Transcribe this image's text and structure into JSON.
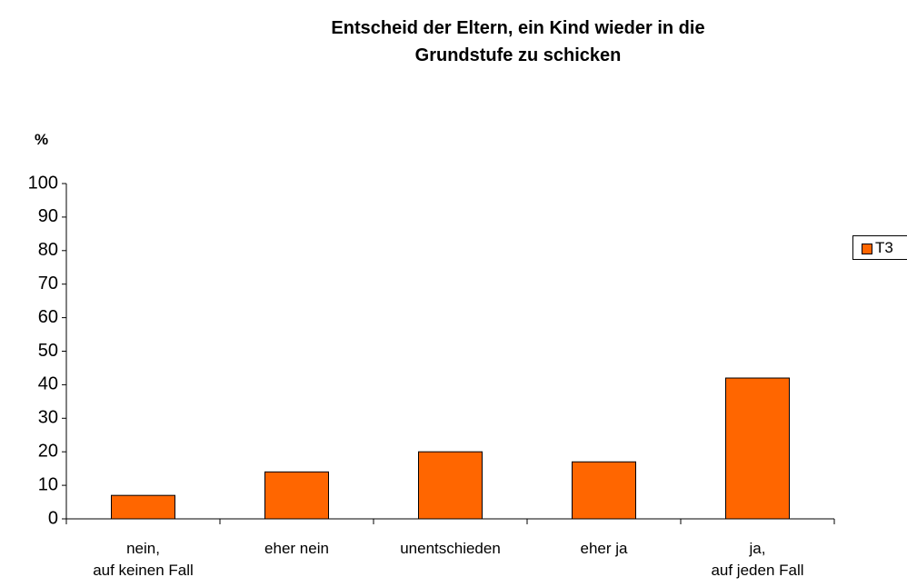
{
  "chart_data": {
    "type": "bar",
    "title": "Entscheid der Eltern, ein Kind wieder in die\nGrundstufe zu schicken",
    "y_label": "%",
    "categories": [
      "nein,\nauf keinen Fall",
      "eher nein",
      "unentschieden",
      "eher ja",
      "ja,\nauf jeden Fall"
    ],
    "series": [
      {
        "name": "T3",
        "color": "#ff6600",
        "values": [
          7,
          14,
          20,
          17,
          42
        ]
      }
    ],
    "ylim": [
      0,
      100
    ],
    "yticks": [
      0,
      10,
      20,
      30,
      40,
      50,
      60,
      70,
      80,
      90,
      100
    ],
    "grid": false,
    "legend": "right"
  }
}
